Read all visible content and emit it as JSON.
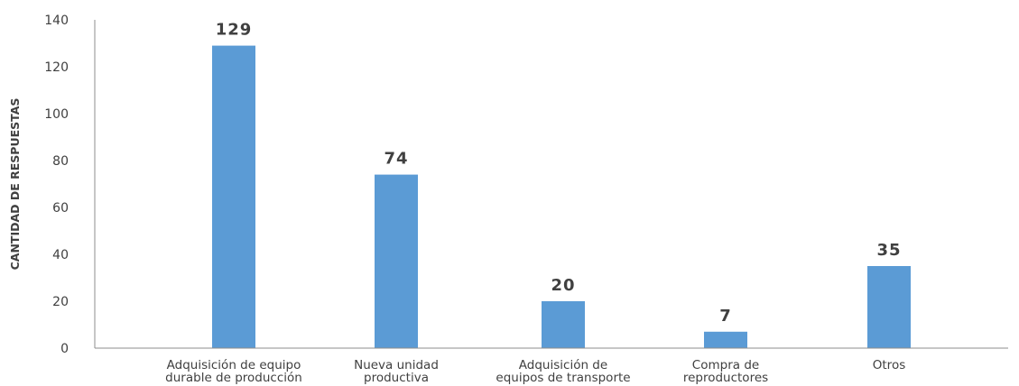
{
  "chart_data": {
    "type": "bar",
    "title": "",
    "xlabel": "",
    "ylabel": "CANTIDAD DE RESPUESTAS",
    "ylim": [
      0,
      140
    ],
    "y_ticks": [
      0,
      20,
      40,
      60,
      80,
      100,
      120,
      140
    ],
    "grid": false,
    "legend": "none",
    "bar_color": "#5b9bd5",
    "categories": [
      [
        "Adquisición de equipo",
        "durable de producción"
      ],
      [
        "Nueva unidad",
        "productiva"
      ],
      [
        "Adquisición de",
        "equipos de transporte"
      ],
      [
        "Compra de",
        "reproductores"
      ],
      [
        "Otros"
      ]
    ],
    "values": [
      129,
      74,
      20,
      7,
      35
    ],
    "data_labels": [
      "129",
      "74",
      "20",
      "7",
      "35"
    ]
  }
}
